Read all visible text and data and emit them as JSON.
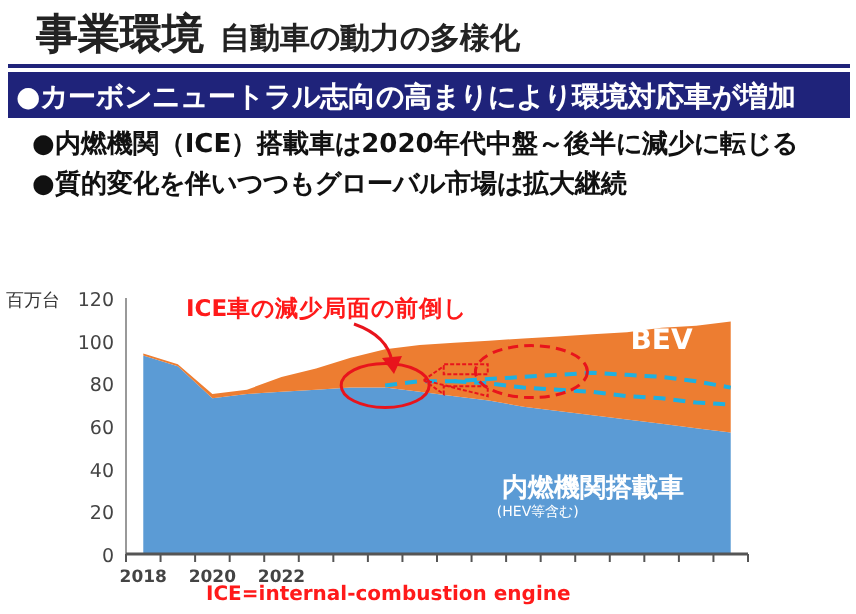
{
  "chart_data": {
    "type": "area",
    "stacked": true,
    "title": "事業環境",
    "subtitle": "自動車の動力の多様化",
    "ylabel": "百万台",
    "categories": [
      "2018",
      null,
      "2020",
      null,
      "2022",
      null,
      null,
      null,
      null,
      null,
      null,
      null,
      null,
      null,
      null,
      null,
      null,
      null
    ],
    "series": [
      {
        "name": "内燃機関搭載車",
        "color": "#5b9bd5",
        "values": [
          93,
          88,
          73,
          75,
          76,
          77,
          78,
          78,
          76,
          74,
          72,
          69,
          67,
          65,
          63,
          61,
          59,
          57
        ]
      },
      {
        "name": "BEV",
        "color": "#ed7d31",
        "values": [
          1,
          1,
          2,
          2,
          7,
          10,
          14,
          18,
          22,
          25,
          28,
          32,
          35,
          38,
          41,
          45,
          48,
          52
        ]
      },
      {
        "type": "line",
        "line_style": "dashed",
        "color": "#1fb0e0",
        "values": [
          null,
          null,
          null,
          null,
          null,
          null,
          null,
          79,
          81,
          81,
          82,
          83,
          84,
          85,
          84,
          83,
          81,
          78
        ]
      },
      {
        "type": "line",
        "line_style": "dashed",
        "color": "#1fb0e0",
        "values": [
          null,
          null,
          null,
          null,
          null,
          null,
          null,
          null,
          null,
          81,
          80,
          78,
          77,
          76,
          74,
          73,
          71,
          70
        ]
      }
    ],
    "ylim": [
      0,
      120
    ],
    "yticks": [
      0,
      20,
      40,
      60,
      80,
      100,
      120
    ],
    "annotations": [
      "●カーボンニュートラル志向の高まりにより環境対応車が増加",
      "●内燃機関（ICE）搭載車は2020年代中盤～後半に減少に転じる",
      "●質的変化を伴いつつもグローバル市場は拡大継続",
      "ICE車の減少局面の前倒し",
      "ICE=internal-combustion engine",
      "(HEV等含む)"
    ]
  }
}
